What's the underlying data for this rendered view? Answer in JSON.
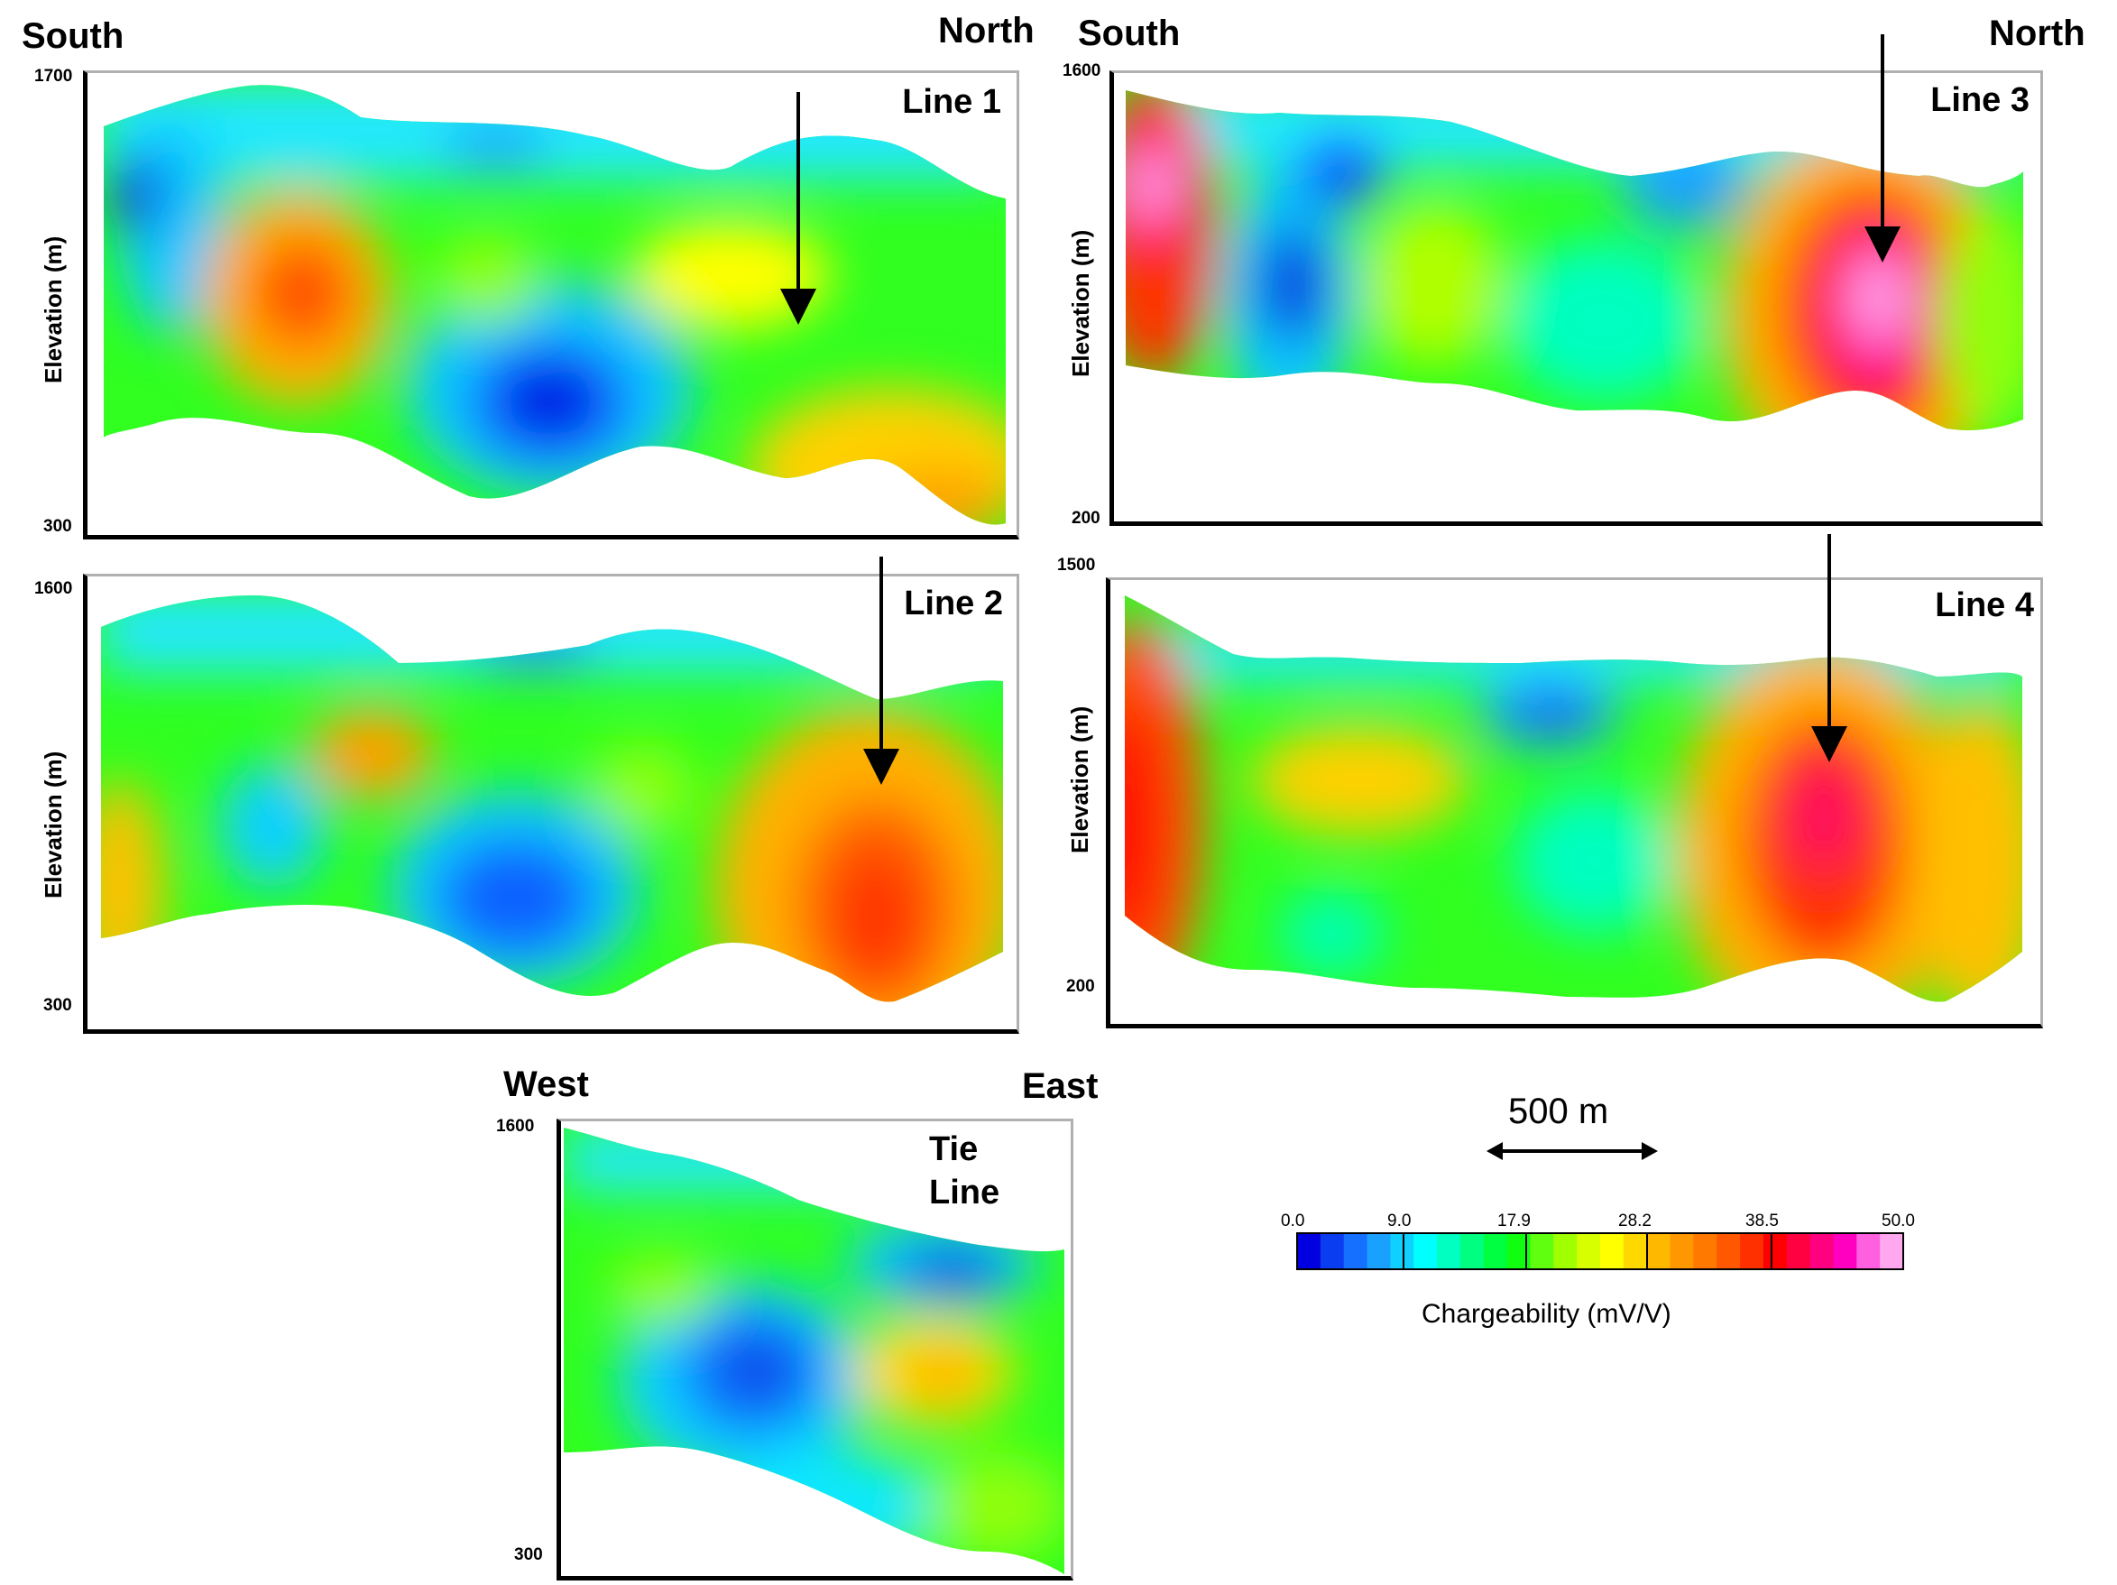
{
  "panels": {
    "line1": {
      "left_dir": "South",
      "right_dir": "North",
      "title": "Line 1",
      "ylabel": "Elevation (m)",
      "ytop": "1700",
      "ybottom": "300"
    },
    "line3": {
      "left_dir": "South",
      "right_dir": "North",
      "title": "Line 3",
      "ylabel": "Elevation (m)",
      "ytop": "1600",
      "ybottom": "200"
    },
    "line2": {
      "title": "Line 2",
      "ylabel": "Elevation (m)",
      "ytop": "1600",
      "ybottom": "300"
    },
    "line4": {
      "title": "Line 4",
      "ylabel": "Elevation (m)",
      "ytop": "1500",
      "ybottom": "200"
    },
    "tie": {
      "left_dir": "West",
      "right_dir": "East",
      "title_line1": "Tie",
      "title_line2": "Line",
      "ytop": "1600",
      "ybottom": "300"
    }
  },
  "scale_bar": {
    "label": "500 m"
  },
  "colorbar": {
    "label": "Chargeability (mV/V)",
    "ticks": [
      "0.0",
      "9.0",
      "17.9",
      "28.2",
      "38.5",
      "50.0"
    ],
    "colors": [
      "#0000e0",
      "#0a3cf0",
      "#1570ff",
      "#1aa0ff",
      "#10d0ff",
      "#00ffff",
      "#00ffc0",
      "#00ff80",
      "#00ff40",
      "#10ff10",
      "#60ff10",
      "#a0ff00",
      "#d8ff00",
      "#ffff00",
      "#ffd800",
      "#ffb800",
      "#ff9800",
      "#ff7800",
      "#ff5800",
      "#ff3000",
      "#ff0000",
      "#ff0040",
      "#ff0080",
      "#ff00c0",
      "#ff60e0",
      "#ffa8f0"
    ]
  }
}
